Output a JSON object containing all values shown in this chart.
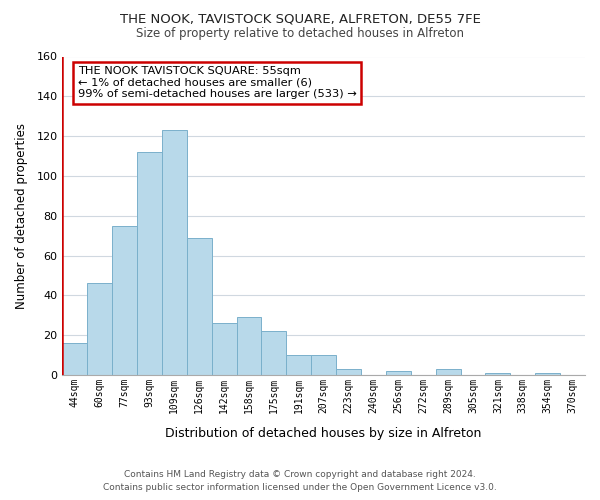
{
  "title": "THE NOOK, TAVISTOCK SQUARE, ALFRETON, DE55 7FE",
  "subtitle": "Size of property relative to detached houses in Alfreton",
  "xlabel": "Distribution of detached houses by size in Alfreton",
  "ylabel": "Number of detached properties",
  "bar_labels": [
    "44sqm",
    "60sqm",
    "77sqm",
    "93sqm",
    "109sqm",
    "126sqm",
    "142sqm",
    "158sqm",
    "175sqm",
    "191sqm",
    "207sqm",
    "223sqm",
    "240sqm",
    "256sqm",
    "272sqm",
    "289sqm",
    "305sqm",
    "321sqm",
    "338sqm",
    "354sqm",
    "370sqm"
  ],
  "bar_heights": [
    16,
    46,
    75,
    112,
    123,
    69,
    26,
    29,
    22,
    10,
    10,
    3,
    0,
    2,
    0,
    3,
    0,
    1,
    0,
    1,
    0
  ],
  "bar_color": "#b8d9ea",
  "bar_edge_color": "#7ab0cb",
  "ylim": [
    0,
    160
  ],
  "yticks": [
    0,
    20,
    40,
    60,
    80,
    100,
    120,
    140,
    160
  ],
  "annotation_line1": "THE NOOK TAVISTOCK SQUARE: 55sqm",
  "annotation_line2": "← 1% of detached houses are smaller (6)",
  "annotation_line3": "99% of semi-detached houses are larger (533) →",
  "annotation_box_facecolor": "#ffffff",
  "annotation_box_edgecolor": "#cc0000",
  "red_line_color": "#cc0000",
  "footer_line1": "Contains HM Land Registry data © Crown copyright and database right 2024.",
  "footer_line2": "Contains public sector information licensed under the Open Government Licence v3.0.",
  "background_color": "#ffffff",
  "grid_color": "#d0d8e0",
  "title_fontsize": 9.5,
  "subtitle_fontsize": 8.5
}
